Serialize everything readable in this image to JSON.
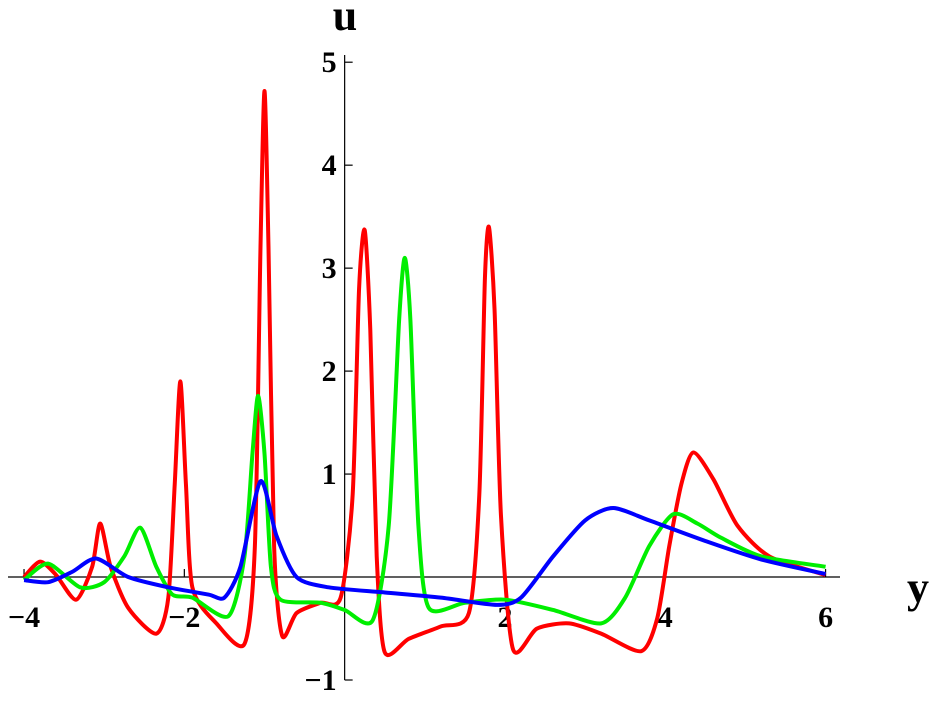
{
  "chart_data": {
    "type": "line",
    "x_label": "y",
    "y_label": "u",
    "xlim": [
      -4.2,
      6.18
    ],
    "ylim": [
      -1,
      5.07
    ],
    "xticks": [
      {
        "value": -4,
        "label": "−4"
      },
      {
        "value": -2,
        "label": "−2"
      },
      2,
      4,
      6
    ],
    "yticks": [
      {
        "value": -1,
        "label": "−1"
      },
      1,
      2,
      3,
      4,
      5
    ],
    "series": [
      {
        "color": "#ff0000",
        "x": [
          -4,
          -3.8,
          -3.6,
          -3.35,
          -3.15,
          -3.05,
          -2.92,
          -2.7,
          -2.35,
          -2.2,
          -2.12,
          -2.05,
          -1.98,
          -1.9,
          -1.6,
          -1.25,
          -1.12,
          -1.05,
          -1.0,
          -0.95,
          -0.88,
          -0.78,
          -0.6,
          -0.3,
          -0.05,
          0.1,
          0.18,
          0.25,
          0.32,
          0.4,
          0.5,
          0.8,
          1.2,
          1.55,
          1.68,
          1.75,
          1.8,
          1.87,
          1.95,
          2.1,
          2.4,
          2.8,
          3.2,
          3.7,
          3.9,
          4.05,
          4.2,
          4.35,
          4.6,
          4.9,
          5.3,
          6
        ],
        "values": [
          0.0,
          0.15,
          0.02,
          -0.22,
          0.1,
          0.52,
          0.1,
          -0.3,
          -0.55,
          -0.2,
          0.9,
          1.9,
          0.9,
          -0.1,
          -0.45,
          -0.65,
          0.3,
          3.2,
          4.72,
          3.2,
          0.3,
          -0.57,
          -0.35,
          -0.25,
          -0.2,
          0.8,
          2.8,
          3.37,
          2.4,
          0.2,
          -0.73,
          -0.6,
          -0.48,
          -0.35,
          0.8,
          2.9,
          3.4,
          2.6,
          0.6,
          -0.7,
          -0.5,
          -0.45,
          -0.55,
          -0.72,
          -0.4,
          0.3,
          0.9,
          1.21,
          0.95,
          0.5,
          0.2,
          0.02
        ]
      },
      {
        "color": "#00ee00",
        "x": [
          -4,
          -3.7,
          -3.3,
          -3.0,
          -2.75,
          -2.55,
          -2.35,
          -2.15,
          -1.9,
          -1.45,
          -1.25,
          -1.15,
          -1.08,
          -1.0,
          -0.92,
          -0.8,
          -0.3,
          0.0,
          0.35,
          0.55,
          0.68,
          0.75,
          0.82,
          0.92,
          1.05,
          1.5,
          2.0,
          2.6,
          3.2,
          3.5,
          3.8,
          4.1,
          4.4,
          4.7,
          5.2,
          6
        ],
        "values": [
          -0.03,
          0.13,
          -0.1,
          -0.05,
          0.2,
          0.48,
          0.1,
          -0.17,
          -0.2,
          -0.38,
          0.2,
          1.2,
          1.76,
          1.2,
          0.1,
          -0.22,
          -0.25,
          -0.32,
          -0.42,
          0.5,
          2.5,
          3.1,
          2.5,
          0.5,
          -0.3,
          -0.25,
          -0.22,
          -0.32,
          -0.45,
          -0.2,
          0.3,
          0.61,
          0.52,
          0.38,
          0.2,
          0.1
        ]
      },
      {
        "color": "#0000ff",
        "x": [
          -4,
          -3.7,
          -3.4,
          -3.1,
          -2.7,
          -2.2,
          -1.7,
          -1.5,
          -1.3,
          -1.05,
          -0.85,
          -0.6,
          -0.2,
          0.5,
          1.2,
          1.9,
          2.2,
          2.6,
          3.0,
          3.35,
          3.8,
          4.5,
          5.2,
          6
        ],
        "values": [
          -0.03,
          -0.05,
          0.05,
          0.18,
          0.0,
          -0.1,
          -0.17,
          -0.2,
          0.1,
          0.93,
          0.4,
          0.0,
          -0.1,
          -0.15,
          -0.2,
          -0.27,
          -0.2,
          0.2,
          0.55,
          0.67,
          0.55,
          0.35,
          0.17,
          0.03
        ]
      }
    ]
  }
}
